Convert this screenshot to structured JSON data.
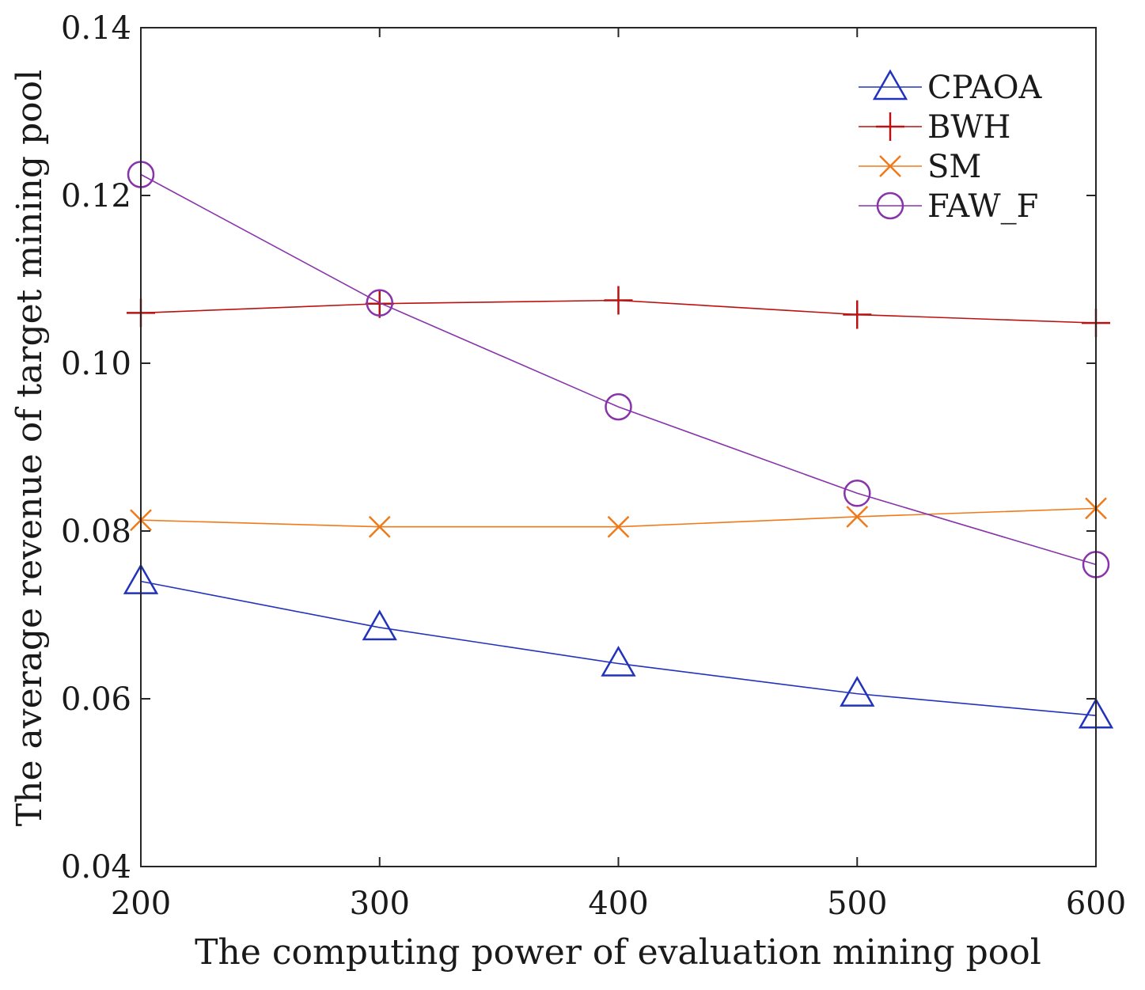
{
  "chart_data": {
    "type": "line",
    "xlabel": "The computing power of evaluation mining pool",
    "ylabel": "The average revenue of target mining pool",
    "x": [
      200,
      300,
      400,
      500,
      600
    ],
    "xlim": [
      200,
      600
    ],
    "ylim": [
      0.04,
      0.14
    ],
    "xticks": [
      200,
      300,
      400,
      500,
      600
    ],
    "xtick_labels": [
      "200",
      "300",
      "400",
      "500",
      "600"
    ],
    "yticks": [
      0.04,
      0.06,
      0.08,
      0.1,
      0.12,
      0.14
    ],
    "ytick_labels": [
      "0.04",
      "0.06",
      "0.08",
      "0.10",
      "0.12",
      "0.14"
    ],
    "grid": false,
    "legend_position": "top-right",
    "series": [
      {
        "name": "CPAOA",
        "values": [
          0.074,
          0.0685,
          0.0642,
          0.0606,
          0.058
        ],
        "color": "#2233bb",
        "marker": "triangle"
      },
      {
        "name": "BWH",
        "values": [
          0.106,
          0.1071,
          0.1075,
          0.1058,
          0.1048
        ],
        "color": "#bb1111",
        "marker": "plus"
      },
      {
        "name": "SM",
        "values": [
          0.0813,
          0.0805,
          0.0805,
          0.0817,
          0.0827
        ],
        "color": "#f07a1a",
        "marker": "x"
      },
      {
        "name": "FAW_F",
        "values": [
          0.1225,
          0.1072,
          0.0948,
          0.0845,
          0.076
        ],
        "color": "#8833aa",
        "marker": "circle"
      }
    ]
  }
}
